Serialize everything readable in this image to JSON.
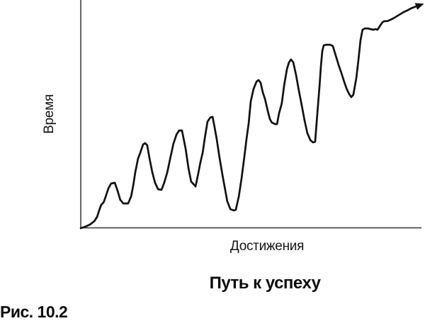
{
  "figure": {
    "y_axis_label": "Время",
    "x_axis_label": "Достижения",
    "caption": "Путь к успеху",
    "figure_number": "Рис. 10.2"
  },
  "colors": {
    "curve": "#111111",
    "axis": "#4b4b4b",
    "background": "#ffffff",
    "text": "#111111"
  },
  "chart_data": {
    "type": "line",
    "title": "Путь к успеху",
    "xlabel": "Достижения",
    "ylabel": "Время",
    "x_range": [
      0,
      100
    ],
    "y_range": [
      0,
      100
    ],
    "grid": false,
    "legend": false,
    "tick_labels": "none (conceptual diagram, unitless axes)",
    "annotations": [
      "curve ends in an arrowhead pointing up and to the right"
    ],
    "description": "Rising zigzag curve: achievements grow over time through repeated peaks and setbacks, each cycle higher than the last",
    "series": [
      {
        "name": "путь к успеху",
        "points": [
          [
            0,
            0
          ],
          [
            1.2,
            0.6
          ],
          [
            2.7,
            1.6
          ],
          [
            4,
            3.1
          ],
          [
            4.8,
            5
          ],
          [
            5.4,
            7.8
          ],
          [
            6,
            10.3
          ],
          [
            6.7,
            11.3
          ],
          [
            7.3,
            13.8
          ],
          [
            8.1,
            17.5
          ],
          [
            8.9,
            19.7
          ],
          [
            10,
            20
          ],
          [
            10.8,
            16.6
          ],
          [
            11.6,
            12.5
          ],
          [
            12.5,
            10.9
          ],
          [
            13.9,
            10.9
          ],
          [
            14.8,
            14.1
          ],
          [
            15.4,
            18.8
          ],
          [
            16,
            24.7
          ],
          [
            16.8,
            30.6
          ],
          [
            17.5,
            33.4
          ],
          [
            18.3,
            36.9
          ],
          [
            18.9,
            37.5
          ],
          [
            19.5,
            36.6
          ],
          [
            20.2,
            30.6
          ],
          [
            21,
            24.7
          ],
          [
            21.8,
            20
          ],
          [
            22.7,
            17.2
          ],
          [
            23.7,
            16.9
          ],
          [
            24.5,
            20
          ],
          [
            25.4,
            24.7
          ],
          [
            26.2,
            30.3
          ],
          [
            27.2,
            37.2
          ],
          [
            28.1,
            41.3
          ],
          [
            28.9,
            43.1
          ],
          [
            29.7,
            43.1
          ],
          [
            30.8,
            35
          ],
          [
            31.6,
            26.6
          ],
          [
            32.4,
            20.6
          ],
          [
            33.1,
            19.4
          ],
          [
            33.7,
            18.4
          ],
          [
            34.5,
            24.1
          ],
          [
            35.1,
            28.8
          ],
          [
            35.8,
            33.4
          ],
          [
            36.4,
            39.7
          ],
          [
            37.2,
            46.9
          ],
          [
            38,
            48.8
          ],
          [
            38.7,
            49.1
          ],
          [
            39.3,
            44.4
          ],
          [
            39.9,
            39.4
          ],
          [
            40.7,
            31.3
          ],
          [
            41.6,
            23.4
          ],
          [
            42.4,
            16.9
          ],
          [
            43,
            11.9
          ],
          [
            43.9,
            8.4
          ],
          [
            44.9,
            7.8
          ],
          [
            45.5,
            8.1
          ],
          [
            46.4,
            14.1
          ],
          [
            47.2,
            21.9
          ],
          [
            48,
            31.3
          ],
          [
            48.6,
            38.8
          ],
          [
            49.3,
            46.3
          ],
          [
            49.9,
            55.9
          ],
          [
            50.7,
            61.3
          ],
          [
            51.6,
            64.7
          ],
          [
            52.2,
            65.3
          ],
          [
            52.8,
            64.1
          ],
          [
            53.4,
            60
          ],
          [
            54.1,
            56.9
          ],
          [
            54.9,
            51.6
          ],
          [
            55.5,
            48.1
          ],
          [
            56.1,
            46.6
          ],
          [
            57,
            45.9
          ],
          [
            57.6,
            45.9
          ],
          [
            58.2,
            50.6
          ],
          [
            59,
            55
          ],
          [
            59.7,
            63.1
          ],
          [
            60.5,
            70
          ],
          [
            61.1,
            73.1
          ],
          [
            61.7,
            74.4
          ],
          [
            62.4,
            73.1
          ],
          [
            63.2,
            67.5
          ],
          [
            64,
            60.9
          ],
          [
            64.9,
            53.8
          ],
          [
            65.7,
            47.5
          ],
          [
            66.5,
            41.9
          ],
          [
            67.4,
            38.8
          ],
          [
            68.2,
            37.8
          ],
          [
            68.8,
            38.1
          ],
          [
            69.4,
            49.7
          ],
          [
            70.1,
            63.1
          ],
          [
            70.5,
            71.6
          ],
          [
            70.9,
            78.1
          ],
          [
            71.3,
            80.6
          ],
          [
            72.1,
            80.9
          ],
          [
            73.2,
            80.9
          ],
          [
            74,
            80.3
          ],
          [
            74.8,
            76.3
          ],
          [
            75.7,
            71.9
          ],
          [
            76.5,
            68.4
          ],
          [
            77.3,
            64.7
          ],
          [
            78,
            61.6
          ],
          [
            78.8,
            59.1
          ],
          [
            79.4,
            57.8
          ],
          [
            80,
            58.8
          ],
          [
            80.9,
            66.3
          ],
          [
            81.5,
            74.1
          ],
          [
            82.1,
            82.8
          ],
          [
            82.7,
            87.5
          ],
          [
            83.4,
            88.1
          ],
          [
            84.2,
            88.1
          ],
          [
            85,
            87.8
          ],
          [
            85.9,
            87.5
          ],
          [
            86.5,
            87.8
          ],
          [
            87.1,
            87.5
          ],
          [
            87.9,
            89.4
          ],
          [
            88.6,
            90.9
          ],
          [
            89.2,
            91.3
          ],
          [
            90,
            91.3
          ],
          [
            90.9,
            91.9
          ],
          [
            91.7,
            92.5
          ],
          [
            92.7,
            93.4
          ],
          [
            93.8,
            94.4
          ],
          [
            94.8,
            95.3
          ],
          [
            95.8,
            96
          ],
          [
            96.9,
            96.9
          ],
          [
            97.9,
            97.5
          ],
          [
            99,
            98.1
          ]
        ]
      }
    ]
  }
}
